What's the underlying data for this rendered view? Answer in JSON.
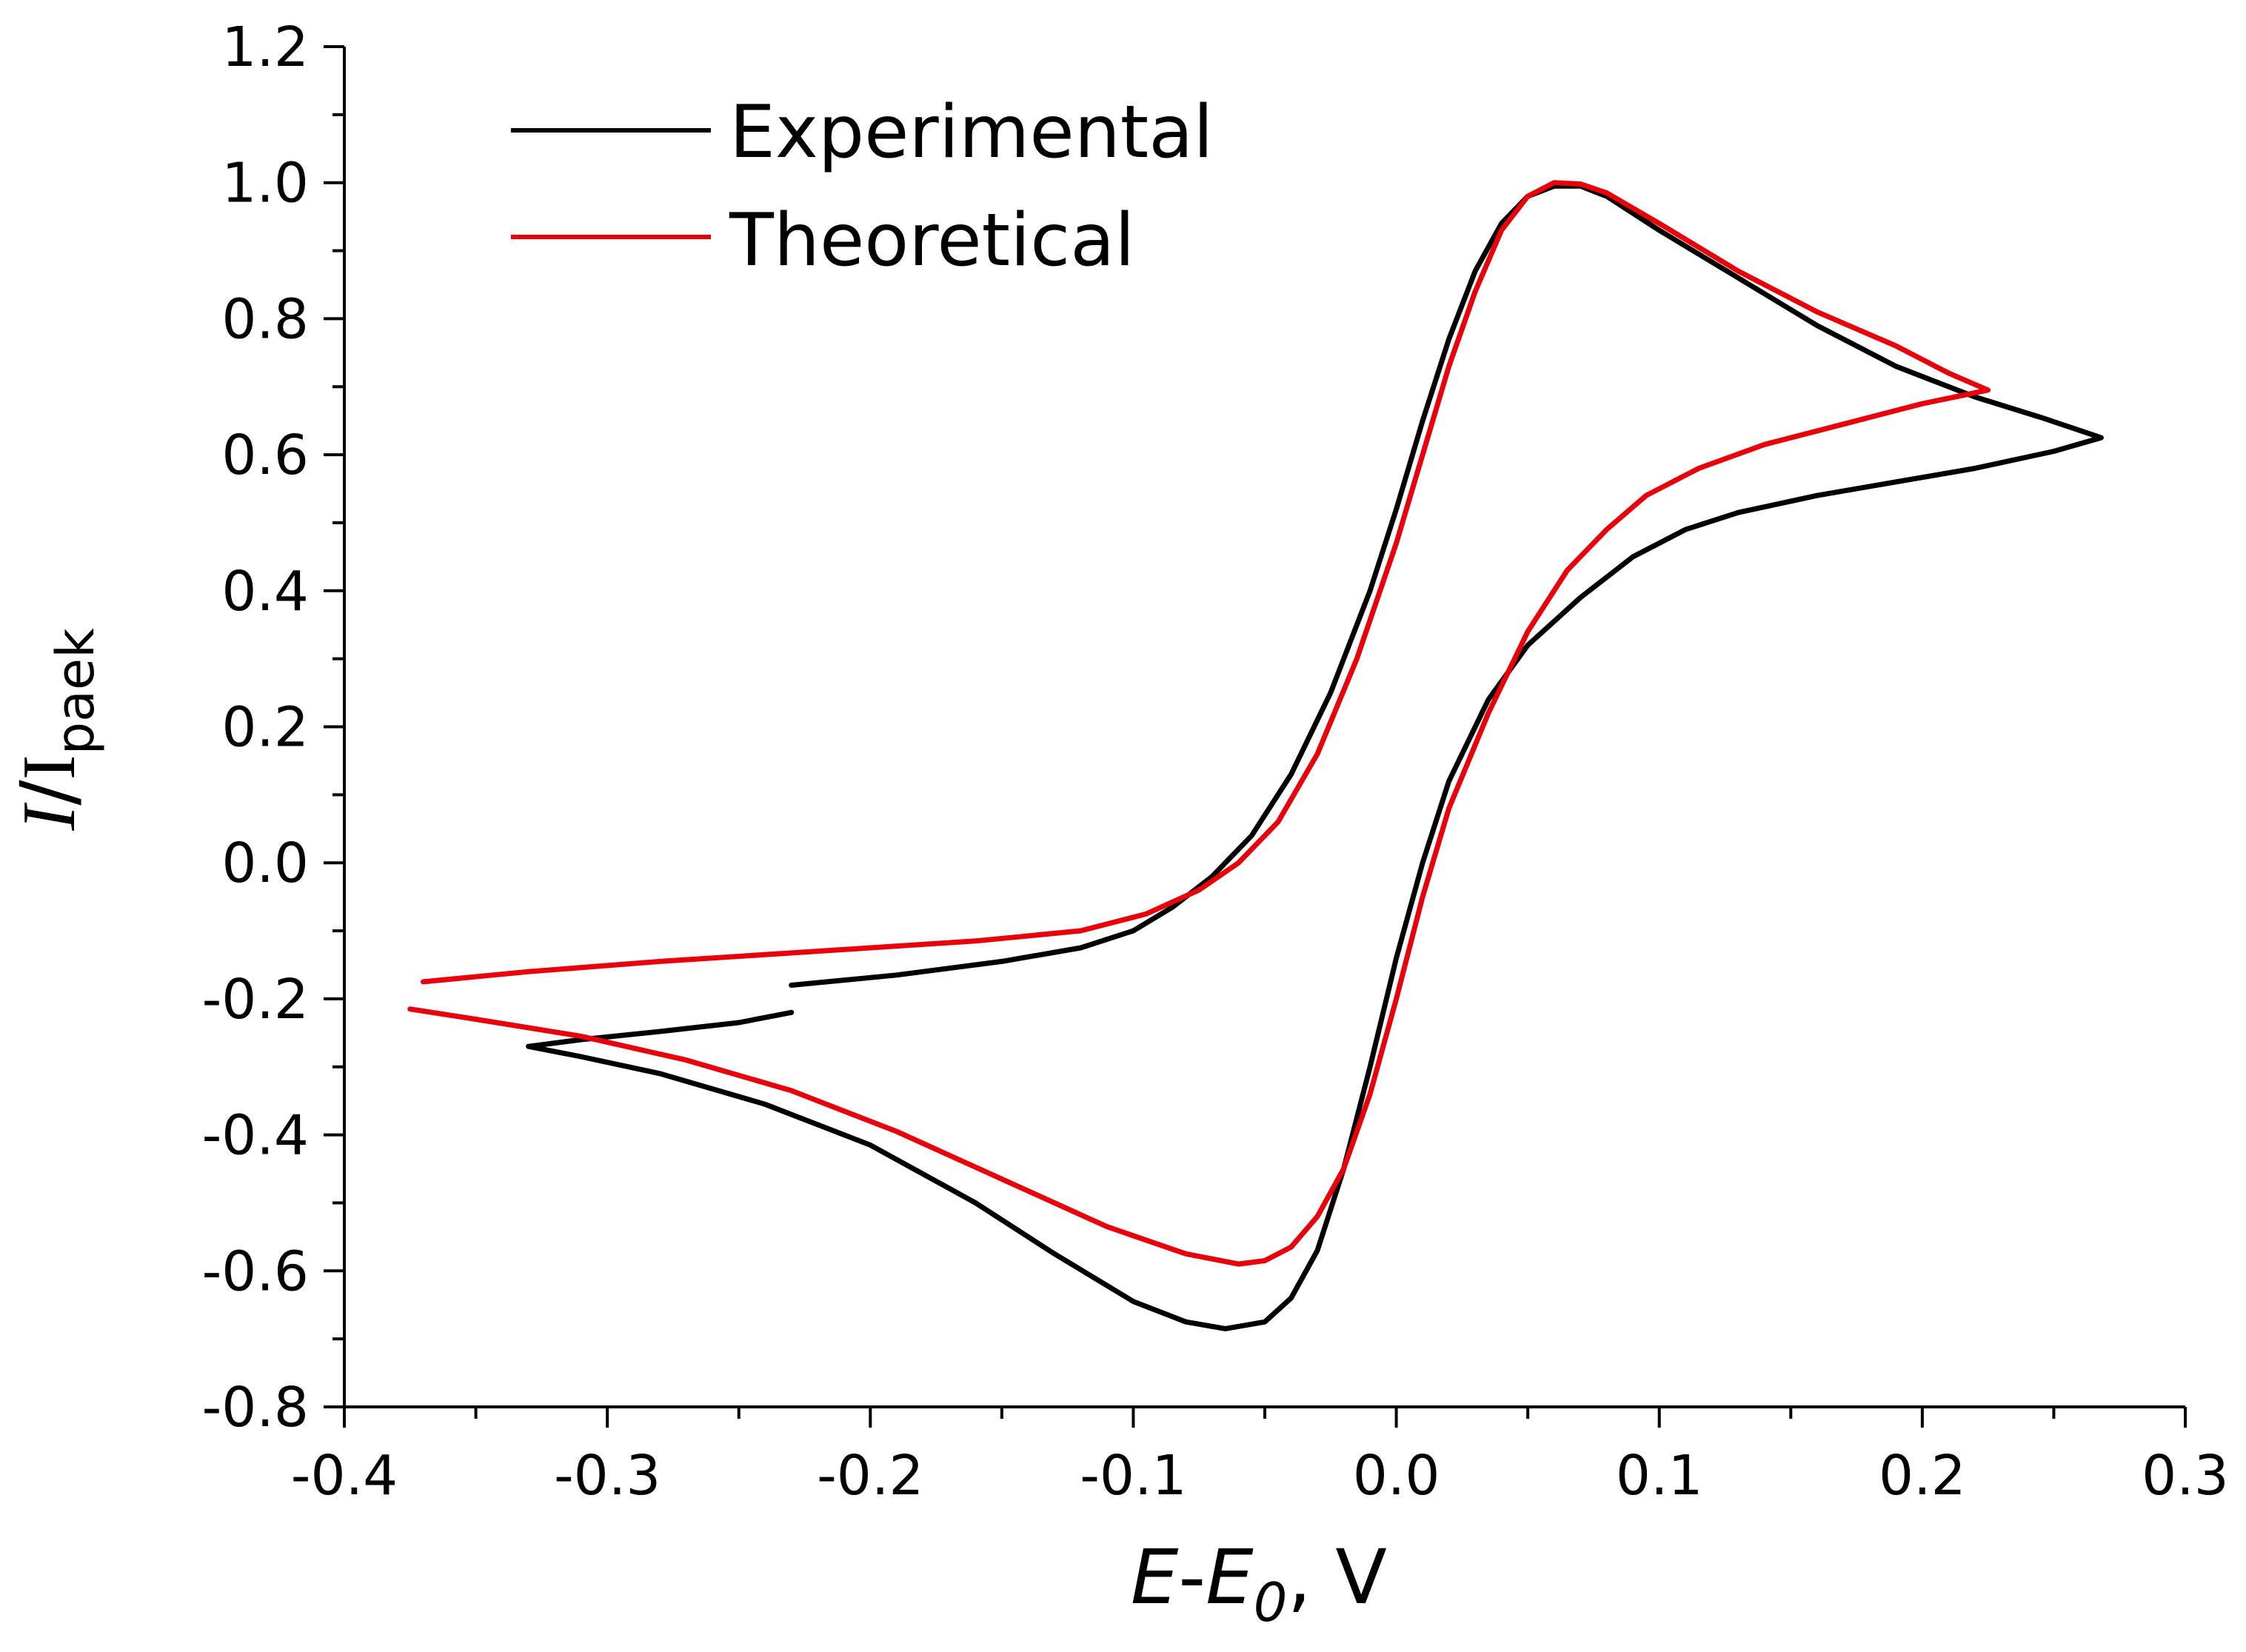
{
  "chart_data": {
    "type": "line",
    "title": "",
    "xlabel": {
      "italic_main": "E",
      "sep": "-",
      "italic_sub_main": "E",
      "sub": "0",
      "tail": ", V"
    },
    "ylabel": {
      "italic_main": "I",
      "slash": "/",
      "main": "I",
      "sub": "paek"
    },
    "xlim": [
      -0.4,
      0.3
    ],
    "ylim": [
      -0.8,
      1.2
    ],
    "x_ticks": [
      "-0.4",
      "-0.3",
      "-0.2",
      "-0.1",
      "0.0",
      "0.1",
      "0.2",
      "0.3"
    ],
    "x_tick_values": [
      -0.4,
      -0.3,
      -0.2,
      -0.1,
      0.0,
      0.1,
      0.2,
      0.3
    ],
    "y_ticks": [
      "-0.8",
      "-0.6",
      "-0.4",
      "-0.2",
      "0.0",
      "0.2",
      "0.4",
      "0.6",
      "0.8",
      "1.0",
      "1.2"
    ],
    "y_tick_values": [
      -0.8,
      -0.6,
      -0.4,
      -0.2,
      0.0,
      0.2,
      0.4,
      0.6,
      0.8,
      1.0,
      1.2
    ],
    "grid": false,
    "legend_position": "top-left",
    "series": [
      {
        "name": "Experimental",
        "color": "#000000",
        "points": [
          [
            -0.23,
            -0.18
          ],
          [
            -0.19,
            -0.165
          ],
          [
            -0.15,
            -0.145
          ],
          [
            -0.12,
            -0.125
          ],
          [
            -0.1,
            -0.1
          ],
          [
            -0.085,
            -0.065
          ],
          [
            -0.07,
            -0.02
          ],
          [
            -0.055,
            0.04
          ],
          [
            -0.04,
            0.13
          ],
          [
            -0.025,
            0.25
          ],
          [
            -0.01,
            0.4
          ],
          [
            0.0,
            0.52
          ],
          [
            0.01,
            0.65
          ],
          [
            0.02,
            0.77
          ],
          [
            0.03,
            0.87
          ],
          [
            0.04,
            0.94
          ],
          [
            0.05,
            0.98
          ],
          [
            0.06,
            0.995
          ],
          [
            0.07,
            0.995
          ],
          [
            0.08,
            0.98
          ],
          [
            0.1,
            0.93
          ],
          [
            0.13,
            0.86
          ],
          [
            0.16,
            0.79
          ],
          [
            0.19,
            0.73
          ],
          [
            0.22,
            0.685
          ],
          [
            0.245,
            0.655
          ],
          [
            0.268,
            0.625
          ],
          [
            0.25,
            0.605
          ],
          [
            0.22,
            0.58
          ],
          [
            0.19,
            0.56
          ],
          [
            0.16,
            0.54
          ],
          [
            0.13,
            0.515
          ],
          [
            0.11,
            0.49
          ],
          [
            0.09,
            0.45
          ],
          [
            0.07,
            0.39
          ],
          [
            0.05,
            0.32
          ],
          [
            0.035,
            0.24
          ],
          [
            0.02,
            0.12
          ],
          [
            0.01,
            0.0
          ],
          [
            0.0,
            -0.14
          ],
          [
            -0.01,
            -0.3
          ],
          [
            -0.02,
            -0.45
          ],
          [
            -0.03,
            -0.57
          ],
          [
            -0.04,
            -0.64
          ],
          [
            -0.05,
            -0.675
          ],
          [
            -0.065,
            -0.685
          ],
          [
            -0.08,
            -0.675
          ],
          [
            -0.1,
            -0.645
          ],
          [
            -0.13,
            -0.575
          ],
          [
            -0.16,
            -0.5
          ],
          [
            -0.2,
            -0.415
          ],
          [
            -0.24,
            -0.355
          ],
          [
            -0.28,
            -0.31
          ],
          [
            -0.31,
            -0.285
          ],
          [
            -0.33,
            -0.27
          ],
          [
            -0.31,
            -0.26
          ],
          [
            -0.28,
            -0.248
          ],
          [
            -0.25,
            -0.235
          ],
          [
            -0.23,
            -0.22
          ]
        ]
      },
      {
        "name": "Theoretical",
        "color": "#e8000b",
        "points": [
          [
            -0.37,
            -0.175
          ],
          [
            -0.33,
            -0.16
          ],
          [
            -0.28,
            -0.145
          ],
          [
            -0.22,
            -0.13
          ],
          [
            -0.16,
            -0.115
          ],
          [
            -0.12,
            -0.1
          ],
          [
            -0.095,
            -0.075
          ],
          [
            -0.075,
            -0.04
          ],
          [
            -0.06,
            0.0
          ],
          [
            -0.045,
            0.06
          ],
          [
            -0.03,
            0.16
          ],
          [
            -0.015,
            0.3
          ],
          [
            0.0,
            0.47
          ],
          [
            0.01,
            0.6
          ],
          [
            0.02,
            0.73
          ],
          [
            0.03,
            0.84
          ],
          [
            0.04,
            0.93
          ],
          [
            0.05,
            0.98
          ],
          [
            0.06,
            1.0
          ],
          [
            0.07,
            0.998
          ],
          [
            0.08,
            0.985
          ],
          [
            0.1,
            0.94
          ],
          [
            0.13,
            0.87
          ],
          [
            0.16,
            0.81
          ],
          [
            0.19,
            0.76
          ],
          [
            0.21,
            0.72
          ],
          [
            0.225,
            0.695
          ],
          [
            0.2,
            0.675
          ],
          [
            0.17,
            0.645
          ],
          [
            0.14,
            0.615
          ],
          [
            0.115,
            0.58
          ],
          [
            0.095,
            0.54
          ],
          [
            0.08,
            0.49
          ],
          [
            0.065,
            0.43
          ],
          [
            0.05,
            0.34
          ],
          [
            0.035,
            0.22
          ],
          [
            0.02,
            0.08
          ],
          [
            0.01,
            -0.05
          ],
          [
            0.0,
            -0.2
          ],
          [
            -0.01,
            -0.34
          ],
          [
            -0.02,
            -0.45
          ],
          [
            -0.03,
            -0.52
          ],
          [
            -0.04,
            -0.565
          ],
          [
            -0.05,
            -0.585
          ],
          [
            -0.06,
            -0.59
          ],
          [
            -0.08,
            -0.575
          ],
          [
            -0.11,
            -0.535
          ],
          [
            -0.15,
            -0.465
          ],
          [
            -0.19,
            -0.395
          ],
          [
            -0.23,
            -0.335
          ],
          [
            -0.27,
            -0.29
          ],
          [
            -0.31,
            -0.255
          ],
          [
            -0.35,
            -0.23
          ],
          [
            -0.375,
            -0.215
          ]
        ]
      }
    ]
  }
}
